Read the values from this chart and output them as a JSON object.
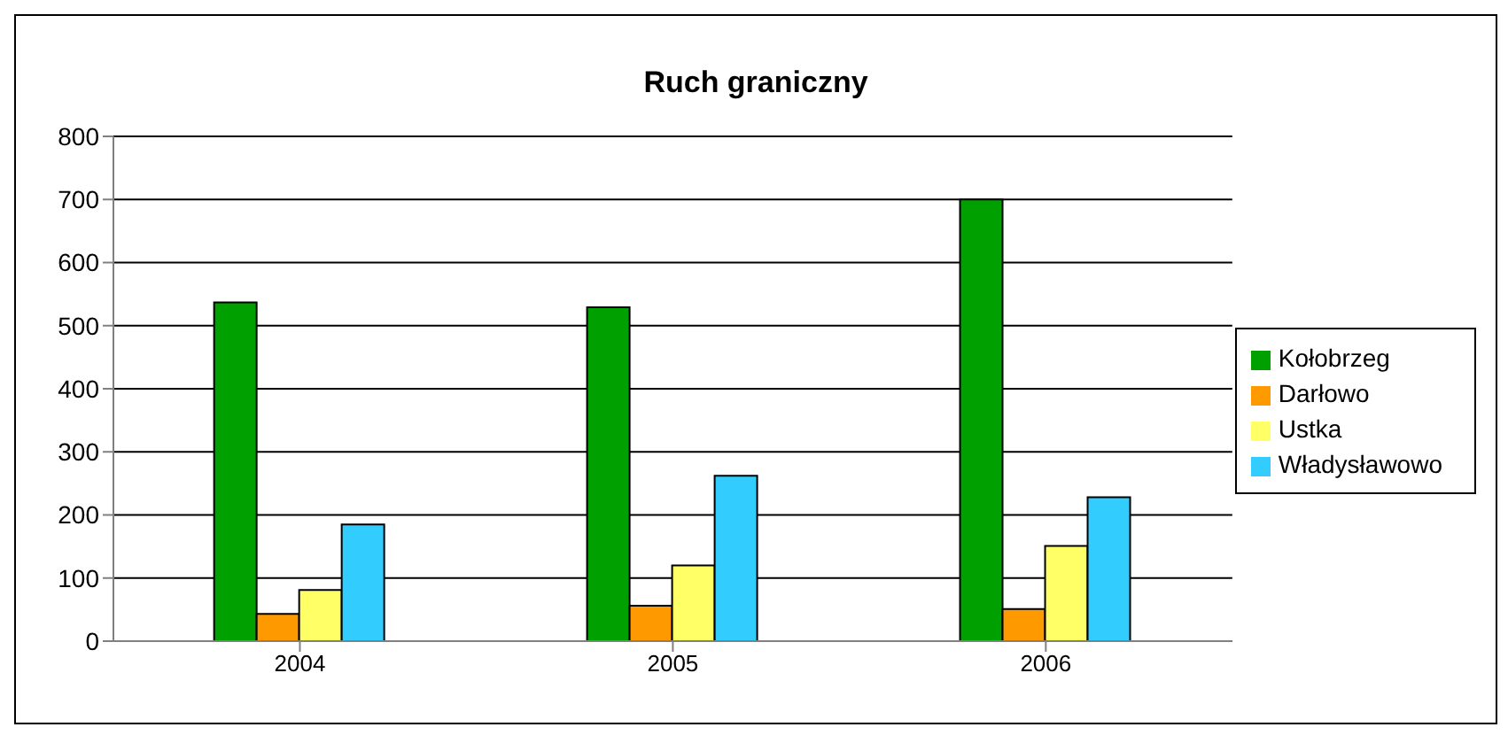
{
  "chart_data": {
    "type": "bar",
    "title": "Ruch graniczny",
    "categories": [
      "2004",
      "2005",
      "2006"
    ],
    "series": [
      {
        "name": "Kołobrzeg",
        "color": "#00a000",
        "values": [
          537,
          529,
          700
        ]
      },
      {
        "name": "Darłowo",
        "color": "#ff9900",
        "values": [
          43,
          56,
          51
        ]
      },
      {
        "name": "Ustka",
        "color": "#ffff66",
        "values": [
          81,
          120,
          151
        ]
      },
      {
        "name": "Władysławowo",
        "color": "#33ccff",
        "values": [
          185,
          262,
          228
        ]
      }
    ],
    "ylim": [
      0,
      800
    ],
    "yticks": [
      0,
      100,
      200,
      300,
      400,
      500,
      600,
      700,
      800
    ],
    "grid": "y",
    "legend": "right"
  }
}
